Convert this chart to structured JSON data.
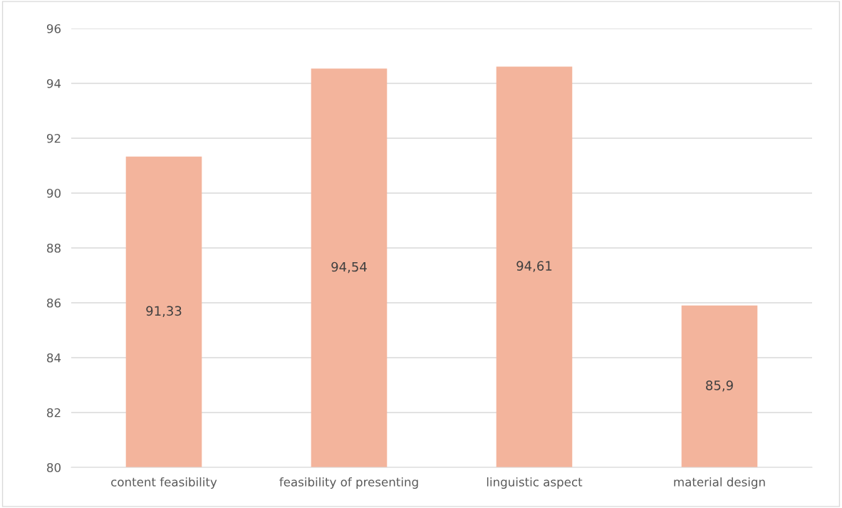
{
  "chart_data": {
    "type": "bar",
    "categories": [
      "content feasibility",
      "feasibility of presenting",
      "linguistic aspect",
      "material design"
    ],
    "values": [
      91.33,
      94.54,
      94.61,
      85.9
    ],
    "value_labels": [
      "91,33",
      "94,54",
      "94,61",
      "85,9"
    ],
    "color": "#f3b49c",
    "ylim": [
      80,
      96
    ],
    "yticks": [
      80,
      82,
      84,
      86,
      88,
      90,
      92,
      94,
      96
    ],
    "grid": "y",
    "legend": false
  }
}
